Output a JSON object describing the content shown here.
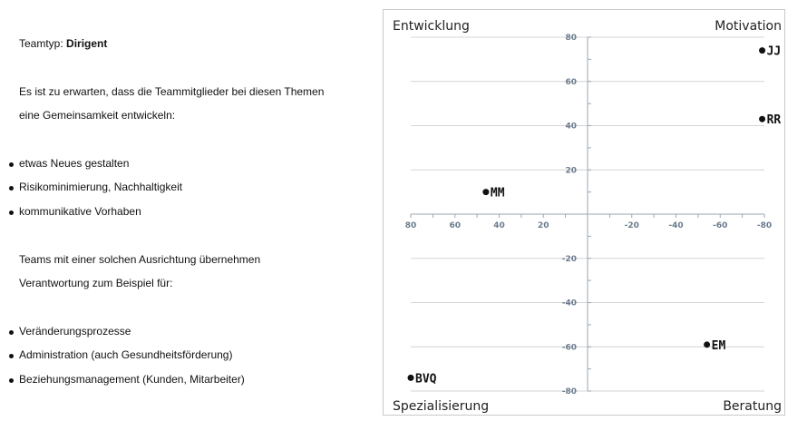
{
  "text": {
    "team_type_label": "Teamtyp: ",
    "team_type_value": "Dirigent",
    "intro_line1": "Es ist zu erwarten, dass die Teammitglieder bei diesen Themen",
    "intro_line2": "eine Gemeinsamkeit entwickeln:",
    "topics": [
      "etwas Neues gestalten",
      "Risikominimierung, Nachhaltigkeit",
      "kommunikative Vorhaben"
    ],
    "resp_line1": "Teams mit einer solchen Ausrichtung übernehmen",
    "resp_line2": "Verantwortung zum Beispiel für:",
    "responsibilities": [
      "Veränderungsprozesse",
      "Administration (auch Gesundheitsförderung)",
      "Beziehungsmanagement (Kunden, Mitarbeiter)"
    ]
  },
  "chart_data": {
    "type": "scatter",
    "quadrant_labels": {
      "top_left": "Entwicklung",
      "top_right": "Motivation",
      "bottom_left": "Spezialisierung",
      "bottom_right": "Beratung"
    },
    "xlim": [
      80,
      -80
    ],
    "ylim": [
      -80,
      80
    ],
    "x_ticks": [
      80,
      60,
      40,
      20,
      -20,
      -40,
      -60,
      -80
    ],
    "y_ticks": [
      80,
      60,
      40,
      20,
      -20,
      -40,
      -60,
      -80
    ],
    "points": [
      {
        "label": "JJ",
        "x": -79,
        "y": 74
      },
      {
        "label": "RR",
        "x": -79,
        "y": 43
      },
      {
        "label": "MM",
        "x": 46,
        "y": 10
      },
      {
        "label": "EM",
        "x": -54,
        "y": -59
      },
      {
        "label": "BVQ",
        "x": 80,
        "y": -74
      }
    ],
    "colors": {
      "grid": "#d4d4d4",
      "axis": "#9aa6b2",
      "tick_text": "#6a7a8c",
      "point": "#111111"
    }
  }
}
